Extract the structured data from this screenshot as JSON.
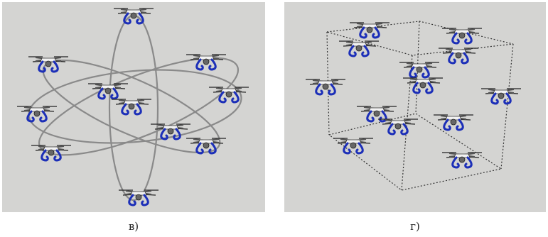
{
  "panels": [
    {
      "label": "в)"
    },
    {
      "label": "г)"
    }
  ]
}
